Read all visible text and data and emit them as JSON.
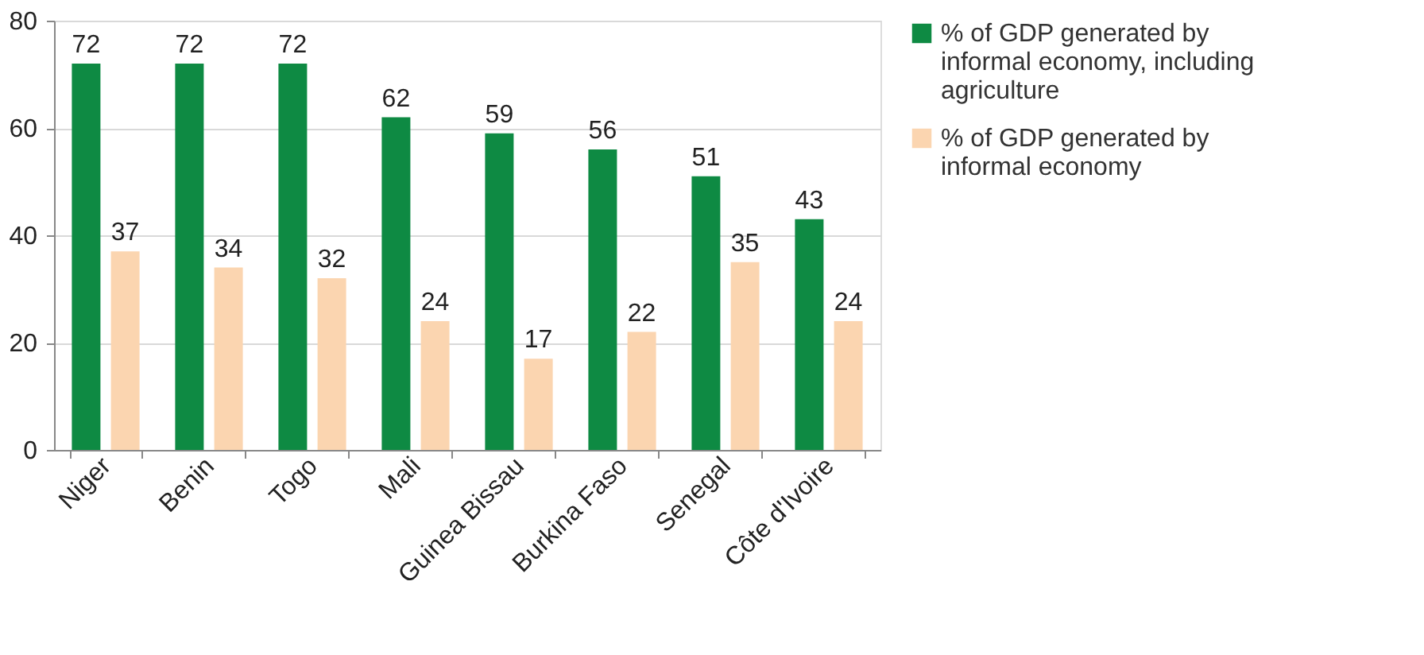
{
  "chart_data": {
    "type": "bar",
    "categories": [
      "Niger",
      "Benin",
      "Togo",
      "Mali",
      "Guinea Bissau",
      "Burkina Faso",
      "Senegal",
      "Côte d'Ivoire"
    ],
    "series": [
      {
        "name": "% of GDP generated by informal economy, including agriculture",
        "color": "#0e8a43",
        "values": [
          72,
          72,
          72,
          62,
          59,
          56,
          51,
          43
        ]
      },
      {
        "name": "% of GDP generated by informal economy",
        "color": "#fbd5b0",
        "values": [
          37,
          34,
          32,
          24,
          17,
          22,
          35,
          24
        ]
      }
    ],
    "ylim": [
      0,
      80
    ],
    "yticks": [
      0,
      20,
      40,
      60,
      80
    ],
    "grid": "y",
    "legend": "right",
    "data_labels": true
  }
}
